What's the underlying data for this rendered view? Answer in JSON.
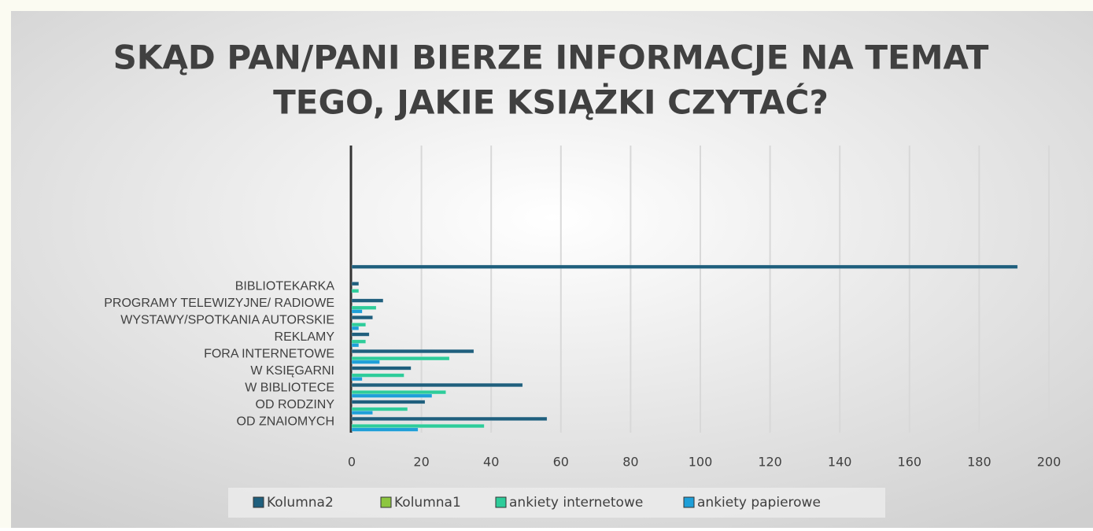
{
  "chart_data": {
    "type": "hbar",
    "title": [
      "SKĄD PAN/PANI BIERZE INFORMACJE NA TEMAT",
      "TEGO, JAKIE KSIĄŻKI CZYTAĆ?"
    ],
    "categories": [
      "OD ZNAIOMYCH",
      "OD RODZINY",
      "W BIBLIOTECE",
      "W KSIĘGARNI",
      "FORA INTERNETOWE",
      "REKLAMY",
      "WYSTAWY/SPOTKANIA AUTORSKIE",
      "PROGRAMY TELEWIZYJNE/ RADIOWE",
      "BIBLIOTEKARKA",
      null,
      null,
      null,
      null,
      null,
      null,
      null,
      null
    ],
    "series": [
      {
        "name": "Kolumna2",
        "color": "#1f5f7d",
        "values": [
          56,
          21,
          49,
          17,
          35,
          5,
          6,
          9,
          2,
          191,
          null,
          null,
          null,
          null,
          null,
          null,
          null
        ]
      },
      {
        "name": "Kolumna1",
        "color": "#8dc63f",
        "values": [
          0,
          0,
          0,
          0,
          0,
          0,
          0,
          0,
          0,
          null,
          null,
          null,
          null,
          null,
          null,
          null,
          null
        ]
      },
      {
        "name": "ankiety internetowe",
        "color": "#2ecc9a",
        "values": [
          38,
          16,
          27,
          15,
          28,
          4,
          4,
          7,
          2,
          null,
          null,
          null,
          null,
          null,
          null,
          null,
          null
        ]
      },
      {
        "name": "ankiety papierowe",
        "color": "#1e9fd8",
        "values": [
          19,
          6,
          23,
          3,
          8,
          2,
          2,
          3,
          0,
          null,
          null,
          null,
          null,
          null,
          null,
          null,
          null
        ]
      }
    ],
    "xlim": [
      0,
      200
    ],
    "xticks": [
      0,
      20,
      40,
      60,
      80,
      100,
      120,
      140,
      160,
      180,
      200
    ],
    "grid": true,
    "legend": "bottom"
  }
}
